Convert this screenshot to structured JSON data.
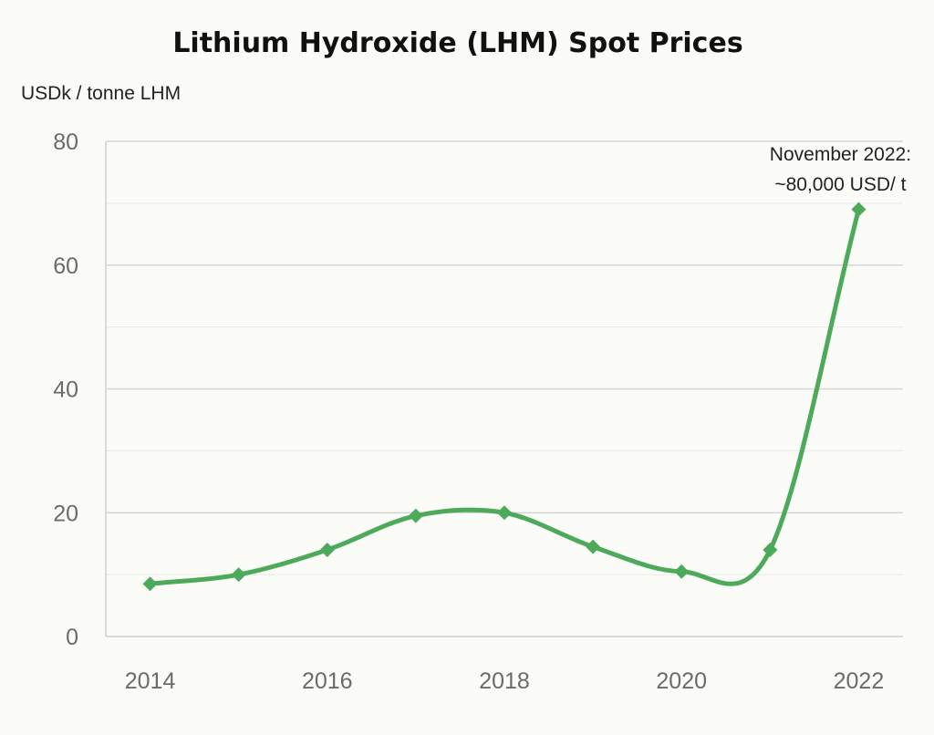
{
  "chart_data": {
    "type": "line",
    "title": "Lithium Hydroxide (LHM) Spot Prices",
    "ylabel": "USDk / tonne LHM",
    "xlabel": "",
    "x": [
      2014,
      2015,
      2016,
      2017,
      2018,
      2019,
      2020,
      2021,
      2022
    ],
    "xticks": [
      "2014",
      "2016",
      "2018",
      "2020",
      "2022"
    ],
    "ylim": [
      0,
      80
    ],
    "yticks": [
      "0",
      "20",
      "40",
      "60",
      "80"
    ],
    "grid": true,
    "series": [
      {
        "values": [
          8.5,
          10,
          14,
          19.5,
          20,
          14.5,
          10.5,
          14,
          69
        ],
        "color": "#4caa5a",
        "marker": "diamond"
      }
    ],
    "annotation": {
      "lines": [
        "November 2022:",
        "~80,000 USD/ t"
      ],
      "x": 2022
    }
  }
}
